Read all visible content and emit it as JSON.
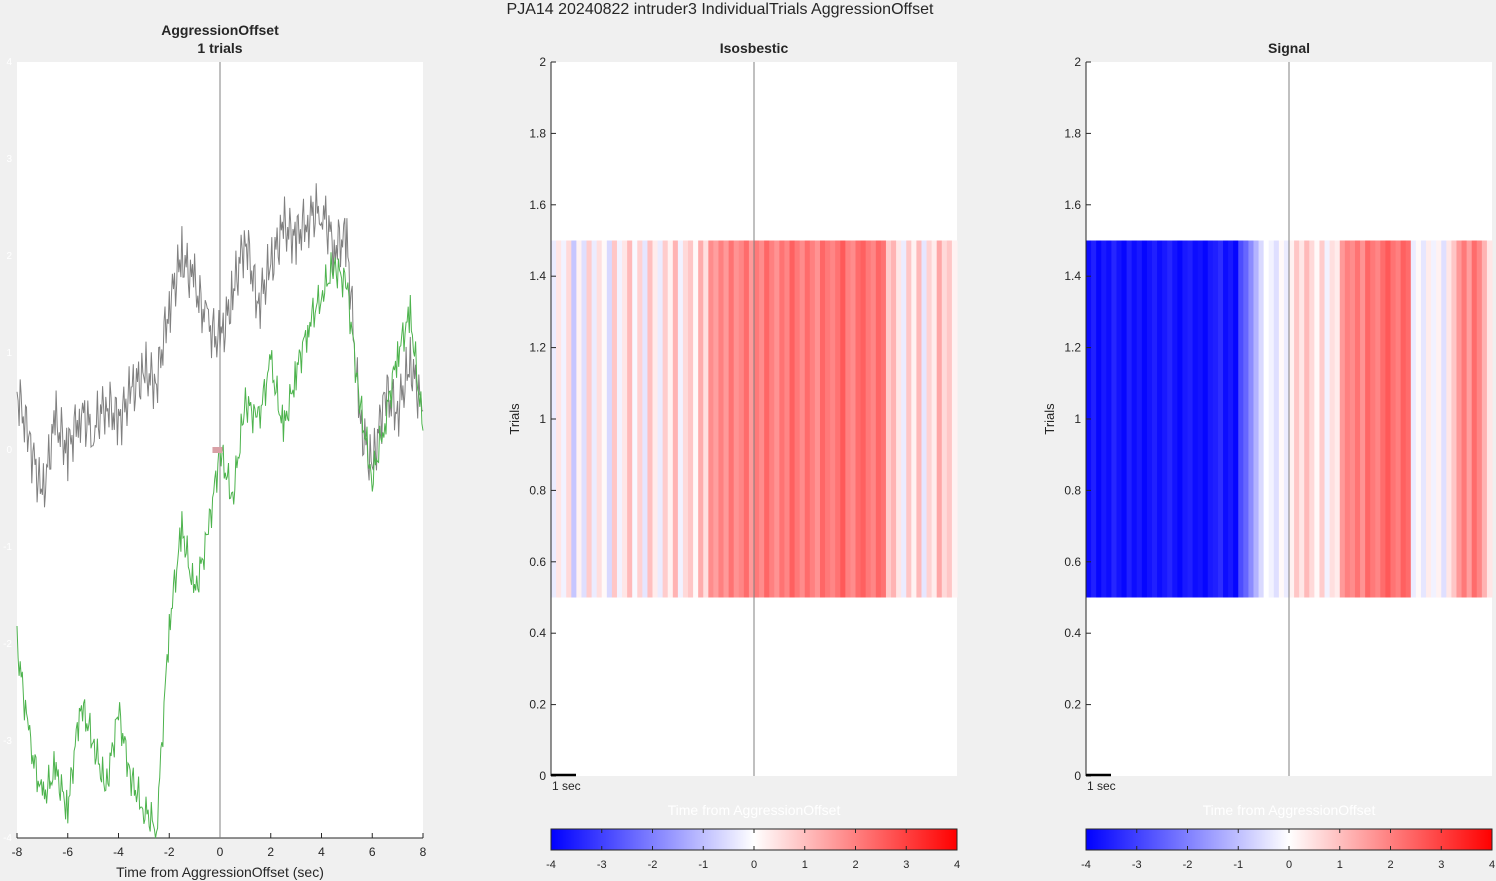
{
  "figure": {
    "title": "PJA14 20240822  intruder3 IndividualTrials AggressionOffset"
  },
  "chart_data": [
    {
      "type": "line",
      "title_line1": "AggressionOffset",
      "title_line2": "1 trials",
      "xlabel": "Time from AggressionOffset (sec)",
      "ylabel": "",
      "xlim": [
        -8,
        8
      ],
      "ylim": [
        -4,
        4
      ],
      "xticks": [
        "-8",
        "-6",
        "-4",
        "-2",
        "0",
        "2",
        "4",
        "6",
        "8"
      ],
      "yticks": [
        "-4",
        "-3",
        "-2",
        "-1",
        "0",
        "1",
        "2",
        "3",
        "4"
      ],
      "event_line_x": 0,
      "marker": {
        "x": -0.1,
        "y": 0
      },
      "series": [
        {
          "color": "#808080",
          "x": [
            -8,
            -7.5,
            -7,
            -6.5,
            -6,
            -5.5,
            -5,
            -4.5,
            -4,
            -3.5,
            -3,
            -2.5,
            -2,
            -1.5,
            -1,
            -0.5,
            0,
            0.5,
            1,
            1.5,
            2,
            2.5,
            3,
            3.5,
            4,
            4.5,
            5,
            5.5,
            6,
            6.5,
            7,
            7.5,
            8
          ],
          "y": [
            0.6,
            0.1,
            -0.5,
            0.3,
            0.0,
            0.4,
            0.2,
            0.5,
            0.3,
            0.6,
            0.8,
            0.7,
            1.5,
            2.0,
            1.7,
            1.3,
            1.1,
            1.6,
            2.2,
            1.5,
            1.9,
            2.3,
            2.2,
            2.4,
            2.5,
            2.1,
            2.2,
            0.3,
            -0.2,
            0.6,
            0.4,
            0.9,
            0.4
          ]
        },
        {
          "color": "#4db34d",
          "x": [
            -8,
            -7.5,
            -7,
            -6.5,
            -6,
            -5.5,
            -5,
            -4.5,
            -4,
            -3.5,
            -3,
            -2.5,
            -2,
            -1.5,
            -1,
            -0.5,
            0,
            0.5,
            1,
            1.5,
            2,
            2.5,
            3,
            3.5,
            4,
            4.5,
            5,
            5.5,
            6,
            6.5,
            7,
            7.5,
            8
          ],
          "y": [
            -2.0,
            -3.0,
            -3.6,
            -3.3,
            -3.7,
            -2.6,
            -3.0,
            -3.5,
            -2.7,
            -3.4,
            -3.7,
            -3.9,
            -1.8,
            -0.8,
            -1.5,
            -0.9,
            0.0,
            -0.5,
            0.5,
            0.3,
            0.9,
            0.2,
            0.8,
            1.3,
            1.6,
            1.9,
            1.7,
            0.5,
            -0.3,
            0.3,
            1.0,
            1.4,
            0.2
          ]
        }
      ]
    },
    {
      "type": "heatmap",
      "title": "Isosbestic",
      "ylabel": "Trials",
      "xlabel": "Time from AggressionOffset",
      "ylim": [
        0,
        2
      ],
      "yticks": [
        "0",
        "0.2",
        "0.4",
        "0.6",
        "0.8",
        "1",
        "1.2",
        "1.4",
        "1.6",
        "1.8",
        "2"
      ],
      "scalebar_label": "1 sec",
      "clim": [
        -4,
        4
      ],
      "colorbar_ticks": [
        "-4",
        "-3",
        "-2",
        "-1",
        "0",
        "1",
        "2",
        "3",
        "4"
      ],
      "xlim": [
        -8,
        8
      ],
      "event_line_x": 0,
      "trial_values": [
        -0.3,
        0.4,
        -0.2,
        0.6,
        -0.9,
        0.2,
        -0.5,
        0.8,
        -0.3,
        0.5,
        0.1,
        -0.6,
        0.9,
        -0.2,
        0.4,
        1.1,
        -0.1,
        0.7,
        -0.4,
        1.0,
        0.3,
        -0.3,
        0.8,
        0.2,
        1.2,
        -0.2,
        0.6,
        0.9,
        0.1,
        1.3,
        0.5,
        1.8,
        1.5,
        2.0,
        1.6,
        2.2,
        1.7,
        1.9,
        2.3,
        1.6,
        2.1,
        1.8,
        2.4,
        2.0,
        1.7,
        2.2,
        1.9,
        2.5,
        2.1,
        1.8,
        2.3,
        2.0,
        1.7,
        2.4,
        2.1,
        1.9,
        2.2,
        2.6,
        2.0,
        1.8,
        2.3,
        2.5,
        2.1,
        1.9,
        2.4,
        2.2,
        0.8,
        1.2,
        0.4,
        -0.3,
        0.9,
        0.2,
        1.1,
        -0.4,
        0.7,
        0.3,
        1.4,
        0.6,
        0.9,
        0.2
      ]
    },
    {
      "type": "heatmap",
      "title": "Signal",
      "ylabel": "Trials",
      "xlabel": "Time from AggressionOffset",
      "ylim": [
        0,
        2
      ],
      "yticks": [
        "0",
        "0.2",
        "0.4",
        "0.6",
        "0.8",
        "1",
        "1.2",
        "1.4",
        "1.6",
        "1.8",
        "2"
      ],
      "scalebar_label": "1 sec",
      "clim": [
        -4,
        4
      ],
      "colorbar_ticks": [
        "-4",
        "-3",
        "-2",
        "-1",
        "0",
        "1",
        "2",
        "3",
        "4"
      ],
      "xlim": [
        -8,
        8
      ],
      "event_line_x": 0,
      "trial_values": [
        -3.8,
        -3.5,
        -3.9,
        -3.6,
        -3.8,
        -3.4,
        -3.7,
        -3.9,
        -3.5,
        -3.8,
        -3.6,
        -3.9,
        -3.7,
        -3.5,
        -3.8,
        -3.6,
        -3.4,
        -3.7,
        -3.9,
        -3.6,
        -3.5,
        -3.8,
        -3.7,
        -3.9,
        -3.6,
        -3.5,
        -3.3,
        -3.8,
        -3.6,
        -3.9,
        -2.8,
        -2.4,
        -1.8,
        -1.2,
        -0.6,
        0.0,
        -0.2,
        -0.5,
        0.1,
        -0.3,
        0.2,
        0.9,
        0.4,
        1.1,
        0.6,
        0.1,
        0.8,
        -0.2,
        0.5,
        0.3,
        1.6,
        2.0,
        1.8,
        2.2,
        1.7,
        2.4,
        2.1,
        1.9,
        2.3,
        2.6,
        2.2,
        2.0,
        2.5,
        2.3,
        -0.3,
        0.1,
        -0.4,
        0.3,
        -0.2,
        0.2,
        -0.5,
        0.4,
        0.9,
        1.6,
        2.1,
        1.5,
        2.3,
        1.9,
        1.2,
        0.4
      ]
    }
  ]
}
